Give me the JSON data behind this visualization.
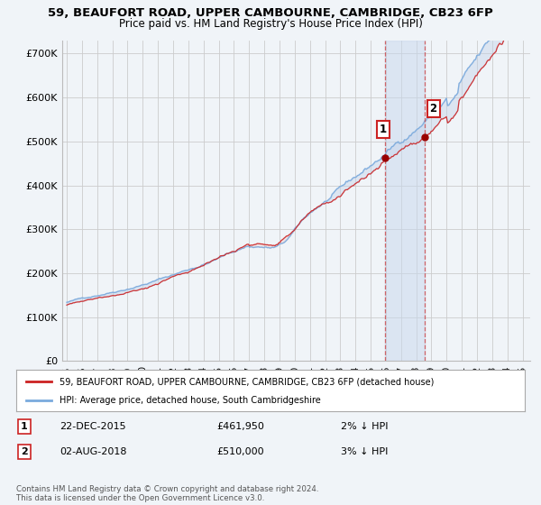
{
  "title1": "59, BEAUFORT ROAD, UPPER CAMBOURNE, CAMBRIDGE, CB23 6FP",
  "title2": "Price paid vs. HM Land Registry's House Price Index (HPI)",
  "legend_line1": "59, BEAUFORT ROAD, UPPER CAMBOURNE, CAMBRIDGE, CB23 6FP (detached house)",
  "legend_line2": "HPI: Average price, detached house, South Cambridgeshire",
  "annotation1_label": "1",
  "annotation1_date": "22-DEC-2015",
  "annotation1_price": "£461,950",
  "annotation1_hpi": "2% ↓ HPI",
  "annotation1_year": 2015.97,
  "annotation1_value": 461950,
  "annotation2_label": "2",
  "annotation2_date": "02-AUG-2018",
  "annotation2_price": "£510,000",
  "annotation2_hpi": "3% ↓ HPI",
  "annotation2_year": 2018.58,
  "annotation2_value": 510000,
  "hpi_color": "#7aaadd",
  "price_color": "#cc2222",
  "background_color": "#f0f4f8",
  "plot_bg_color": "#f0f4f8",
  "grid_color": "#cccccc",
  "ylim": [
    0,
    730000
  ],
  "yticks": [
    0,
    100000,
    200000,
    300000,
    400000,
    500000,
    600000,
    700000
  ],
  "ytick_labels": [
    "£0",
    "£100K",
    "£200K",
    "£300K",
    "£400K",
    "£500K",
    "£600K",
    "£700K"
  ],
  "copyright_text": "Contains HM Land Registry data © Crown copyright and database right 2024.\nThis data is licensed under the Open Government Licence v3.0."
}
